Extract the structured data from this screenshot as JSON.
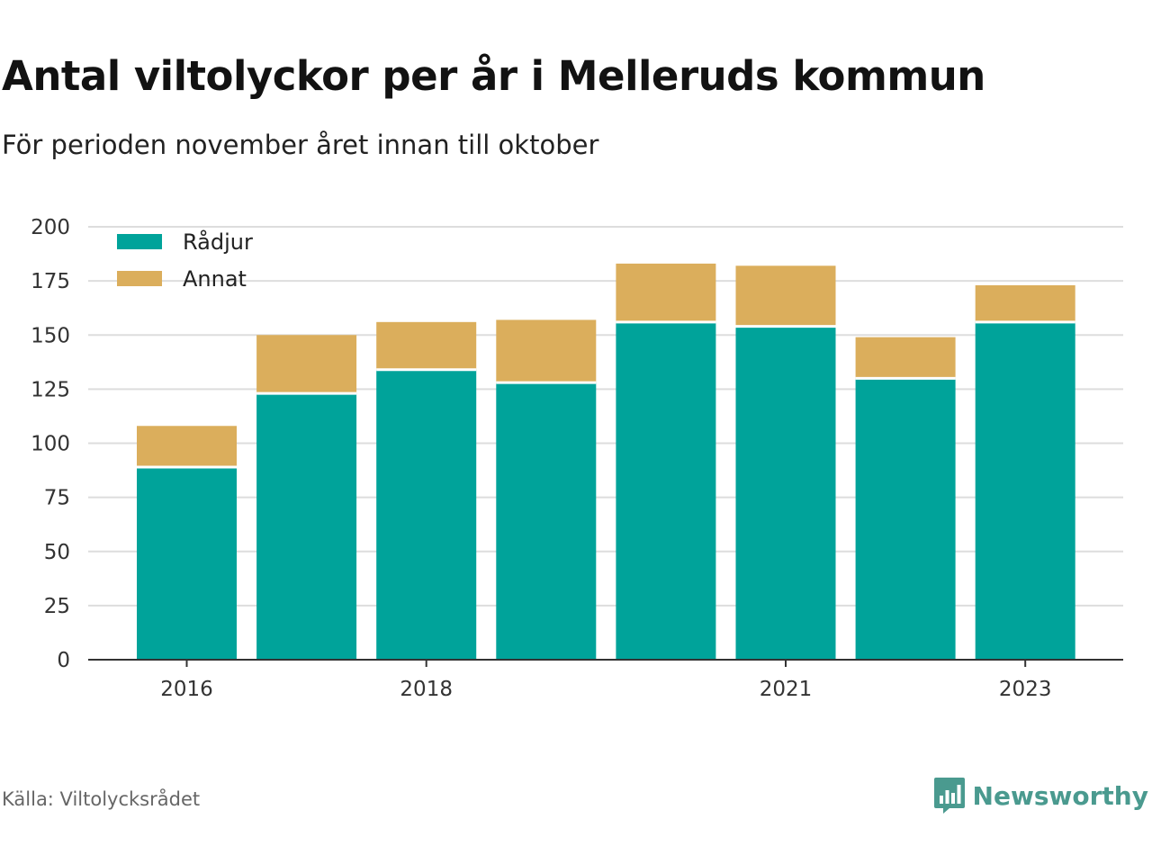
{
  "header": {
    "title": "Antal viltolyckor per år i Melleruds kommun",
    "subtitle": "För perioden november året innan till oktober"
  },
  "footer": {
    "source": "Källa: Viltolycksrådet",
    "brand": "Newsworthy",
    "brand_icon": "bar-chart-speech-bubble-icon"
  },
  "colors": {
    "radjur": "#00a39a",
    "annat": "#dbae5c",
    "grid": "#dddddd",
    "axis": "#333333",
    "brand": "#4a9a8f"
  },
  "chart_data": {
    "type": "bar",
    "stacked": true,
    "categories": [
      "2016",
      "2017",
      "2018",
      "2019",
      "2020",
      "2021",
      "2022",
      "2023"
    ],
    "x_tick_labels": [
      "2016",
      "2018",
      "2021",
      "2023"
    ],
    "series": [
      {
        "name": "Rådjur",
        "values": [
          89,
          123,
          134,
          128,
          156,
          154,
          130,
          156
        ]
      },
      {
        "name": "Annat",
        "values": [
          19,
          27,
          22,
          29,
          27,
          28,
          19,
          17
        ]
      }
    ],
    "ylim": [
      0,
      200
    ],
    "y_ticks": [
      0,
      25,
      50,
      75,
      100,
      125,
      150,
      175,
      200
    ],
    "grid": true,
    "legend_position": "top-left"
  }
}
